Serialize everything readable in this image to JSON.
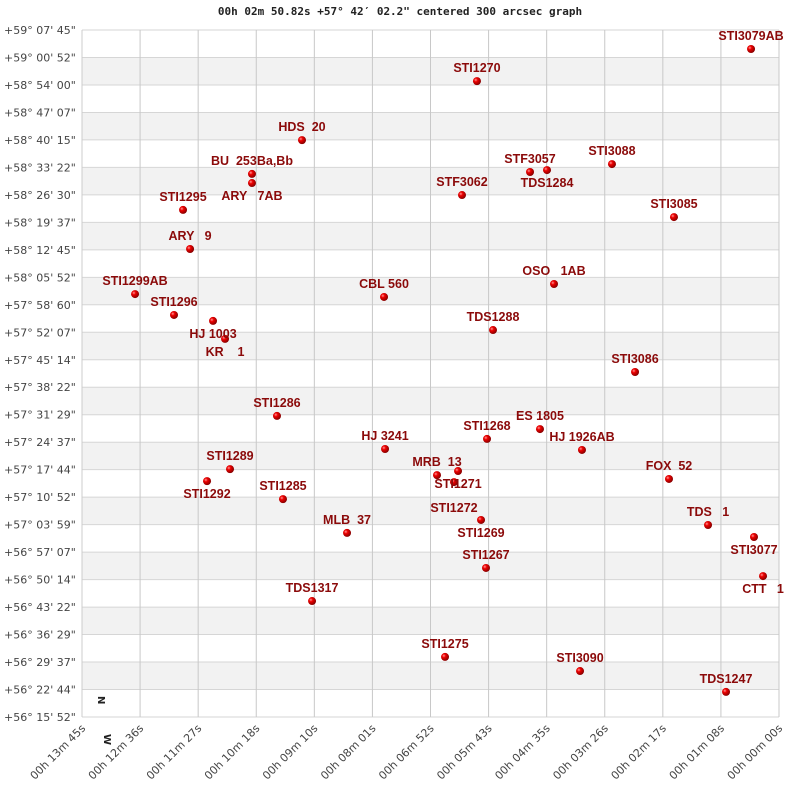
{
  "chart_data": {
    "type": "scatter",
    "title": "00h 02m 50.82s +57° 42′ 02.2\" centered 300 arcsec graph",
    "xlabel": "",
    "ylabel": "",
    "x_units": "RA seconds of time",
    "y_units": "Dec degrees",
    "xlim": [
      825,
      0
    ],
    "ylim": [
      56.26444,
      59.12917
    ],
    "grid": true,
    "compass": {
      "north": "N",
      "west": "W"
    },
    "x_ticks": [
      "00h 13m 45s",
      "00h 12m 36s",
      "00h 11m 27s",
      "00h 10m 18s",
      "00h 09m 10s",
      "00h 08m 01s",
      "00h 06m 52s",
      "00h 05m 43s",
      "00h 04m 35s",
      "00h 03m 26s",
      "00h 02m 17s",
      "00h 01m 08s",
      "00h 00m 00s"
    ],
    "y_ticks": [
      "+59° 07' 45\"",
      "+59° 00' 52\"",
      "+58° 54' 00\"",
      "+58° 47' 07\"",
      "+58° 40' 15\"",
      "+58° 33' 22\"",
      "+58° 26' 30\"",
      "+58° 19' 37\"",
      "+58° 12' 45\"",
      "+58° 05' 52\"",
      "+57° 58' 60\"",
      "+57° 52' 07\"",
      "+57° 45' 14\"",
      "+57° 38' 22\"",
      "+57° 31' 29\"",
      "+57° 24' 37\"",
      "+57° 17' 44\"",
      "+57° 10' 52\"",
      "+57° 03' 59\"",
      "+56° 57' 07\"",
      "+56° 50' 14\"",
      "+56° 43' 22\"",
      "+56° 36' 29\"",
      "+56° 29' 37\"",
      "+56° 22' 44\"",
      "+56° 15' 52\""
    ],
    "points": [
      {
        "label": "STI3079AB",
        "ra": 33.1,
        "dec": 59.05
      },
      {
        "label": "STI1270",
        "ra": 357.5,
        "dec": 58.916
      },
      {
        "label": "HDS  20",
        "ra": 564.6,
        "dec": 58.67
      },
      {
        "label": "BU  253Ba,Bb",
        "ra": 623.8,
        "dec": 58.529
      },
      {
        "label": "ARY   7AB",
        "ra": 623.8,
        "dec": 58.491
      },
      {
        "label": "STF3057",
        "ra": 294.7,
        "dec": 58.537
      },
      {
        "label": "TDS1284",
        "ra": 274.6,
        "dec": 58.545
      },
      {
        "label": "STI3088",
        "ra": 197.7,
        "dec": 58.57
      },
      {
        "label": "STF3062",
        "ra": 375.2,
        "dec": 58.441
      },
      {
        "label": "STI1295",
        "ra": 705.4,
        "dec": 58.379
      },
      {
        "label": "STI3085",
        "ra": 124.3,
        "dec": 58.349
      },
      {
        "label": "ARY   9",
        "ra": 697.1,
        "dec": 58.216
      },
      {
        "label": "STI1299AB",
        "ra": 762.2,
        "dec": 58.028
      },
      {
        "label": "OSO   1AB",
        "ra": 266.3,
        "dec": 58.07
      },
      {
        "label": "CBL 560",
        "ra": 467.5,
        "dec": 58.016
      },
      {
        "label": "STI1296",
        "ra": 716.1,
        "dec": 57.941
      },
      {
        "label": "HJ 1003",
        "ra": 669.9,
        "dec": 57.916
      },
      {
        "label": "KR    1",
        "ra": 655.7,
        "dec": 57.841
      },
      {
        "label": "TDS1288",
        "ra": 338.5,
        "dec": 57.878
      },
      {
        "label": "STI3086",
        "ra": 170.4,
        "dec": 57.703
      },
      {
        "label": "STI1286",
        "ra": 594.2,
        "dec": 57.52
      },
      {
        "label": "ES 1805",
        "ra": 282.9,
        "dec": 57.465
      },
      {
        "label": "STI1268",
        "ra": 345.6,
        "dec": 57.424
      },
      {
        "label": "HJ 3241",
        "ra": 466.3,
        "dec": 57.382
      },
      {
        "label": "HJ 1926AB",
        "ra": 233.2,
        "dec": 57.378
      },
      {
        "label": "STI1289",
        "ra": 649.8,
        "dec": 57.298
      },
      {
        "label": "STI1292",
        "ra": 677.0,
        "dec": 57.248
      },
      {
        "label": "MRB  13",
        "ra": 404.8,
        "dec": 57.273
      },
      {
        "label": "STI1271",
        "ra": 379.9,
        "dec": 57.29
      },
      {
        "label": "STI1272",
        "ra": 384.7,
        "dec": 57.244
      },
      {
        "label": "FOX  52",
        "ra": 130.2,
        "dec": 57.257
      },
      {
        "label": "STI1285",
        "ra": 587.1,
        "dec": 57.173
      },
      {
        "label": "TDS   1",
        "ra": 84.0,
        "dec": 57.065
      },
      {
        "label": "STI1269",
        "ra": 352.7,
        "dec": 57.086
      },
      {
        "label": "STI3077",
        "ra": 29.6,
        "dec": 57.015
      },
      {
        "label": "MLB  37",
        "ra": 511.3,
        "dec": 57.032
      },
      {
        "label": "STI1267",
        "ra": 346.8,
        "dec": 56.886
      },
      {
        "label": "CTT   1",
        "ra": 18.9,
        "dec": 56.852
      },
      {
        "label": "TDS1317",
        "ra": 552.7,
        "dec": 56.748
      },
      {
        "label": "STI1275",
        "ra": 395.3,
        "dec": 56.515
      },
      {
        "label": "STI3090",
        "ra": 235.5,
        "dec": 56.456
      },
      {
        "label": "TDS1247",
        "ra": 62.7,
        "dec": 56.369
      }
    ],
    "colors": {
      "label": "#8b0a0a",
      "point": "#dd0000",
      "band": "#f2f2f2",
      "grid": "#d6d6d6"
    }
  }
}
